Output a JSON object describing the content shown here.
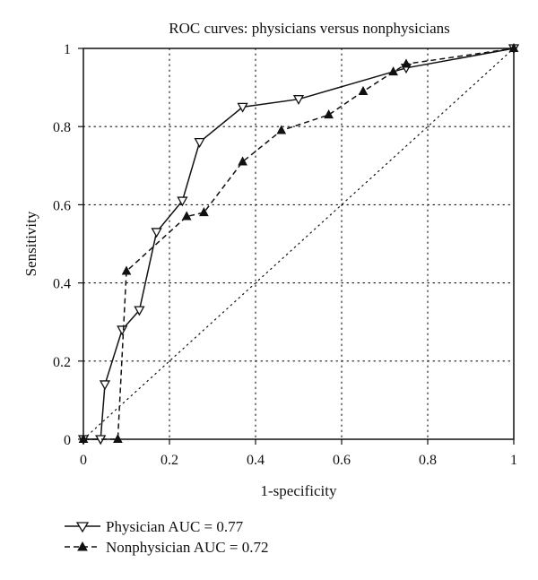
{
  "chart_data": {
    "type": "line",
    "title": "ROC curves: physicians versus nonphysicians",
    "xlabel": "1-specificity",
    "ylabel": "Sensitivity",
    "xlim": [
      0,
      1
    ],
    "ylim": [
      0,
      1
    ],
    "x_ticks": [
      0,
      0.2,
      0.4,
      0.6,
      0.8,
      1
    ],
    "y_ticks": [
      0,
      0.2,
      0.4,
      0.6,
      0.8,
      1
    ],
    "x_tick_labels": [
      "0",
      "0.2",
      "0.4",
      "0.6",
      "0.8",
      "1"
    ],
    "y_tick_labels": [
      "0",
      "0.2",
      "0.4",
      "0.6",
      "0.8",
      "1"
    ],
    "grid": "dotted",
    "legend_position": "bottom-left, below plot",
    "reference_line": {
      "style": "dotted",
      "points": [
        [
          0,
          0
        ],
        [
          1,
          1
        ]
      ]
    },
    "series": [
      {
        "label": "Physician AUC = 0.77",
        "line_style": "solid",
        "marker": "open-down-triangle",
        "color": "#111111",
        "points": [
          [
            0,
            0
          ],
          [
            0.04,
            0
          ],
          [
            0.05,
            0.14
          ],
          [
            0.09,
            0.28
          ],
          [
            0.13,
            0.33
          ],
          [
            0.17,
            0.53
          ],
          [
            0.23,
            0.61
          ],
          [
            0.27,
            0.76
          ],
          [
            0.37,
            0.85
          ],
          [
            0.5,
            0.87
          ],
          [
            0.75,
            0.95
          ],
          [
            1,
            1
          ]
        ]
      },
      {
        "label": "Nonphysician AUC = 0.72",
        "line_style": "dashed",
        "marker": "filled-up-triangle",
        "color": "#111111",
        "points": [
          [
            0,
            0
          ],
          [
            0.08,
            0
          ],
          [
            0.1,
            0.43
          ],
          [
            0.24,
            0.57
          ],
          [
            0.28,
            0.58
          ],
          [
            0.37,
            0.71
          ],
          [
            0.46,
            0.79
          ],
          [
            0.57,
            0.83
          ],
          [
            0.65,
            0.89
          ],
          [
            0.72,
            0.94
          ],
          [
            0.75,
            0.96
          ],
          [
            1,
            1
          ]
        ]
      }
    ]
  }
}
